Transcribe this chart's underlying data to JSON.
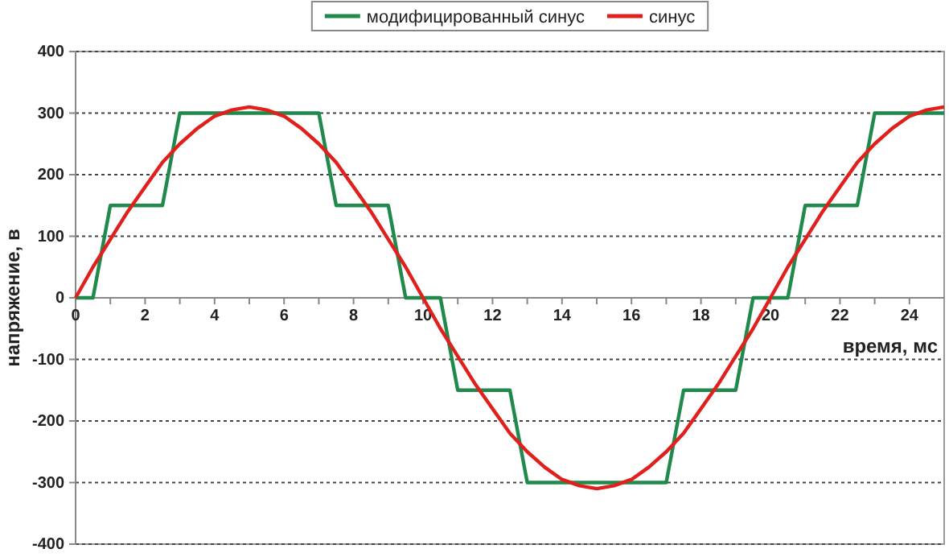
{
  "chart_data": {
    "type": "line",
    "xlabel": "время, мс",
    "ylabel": "напряжение, в",
    "xlim": [
      0,
      25
    ],
    "ylim": [
      -400,
      400
    ],
    "xticks": [
      0,
      {
        "value": 1,
        "label": null
      },
      2,
      {
        "value": 3,
        "label": null
      },
      4,
      {
        "value": 5,
        "label": null
      },
      6,
      {
        "value": 7,
        "label": null
      },
      8,
      {
        "value": 9,
        "label": null
      },
      10,
      {
        "value": 11,
        "label": null
      },
      12,
      {
        "value": 13,
        "label": null
      },
      14,
      {
        "value": 15,
        "label": null
      },
      16,
      {
        "value": 17,
        "label": null
      },
      18,
      {
        "value": 19,
        "label": null
      },
      20,
      {
        "value": 21,
        "label": null
      },
      22,
      {
        "value": 23,
        "label": null
      },
      24
    ],
    "yticks": [
      -400,
      -300,
      -200,
      -100,
      0,
      100,
      200,
      300,
      400
    ],
    "grid": "y",
    "legend": "top",
    "line_style": "solid",
    "marker": "none",
    "series": [
      {
        "name": "модифицированный синус",
        "color": "#1f8a4c",
        "x": [
          0,
          0.5,
          1,
          2.5,
          3,
          7,
          7.5,
          9,
          9.5,
          10.5,
          11,
          12.5,
          13,
          17,
          17.5,
          19,
          19.5,
          20.5,
          21,
          22.5,
          23,
          25
        ],
        "values": [
          0,
          0,
          150,
          150,
          300,
          300,
          150,
          150,
          0,
          0,
          -150,
          -150,
          -300,
          -300,
          -150,
          -150,
          0,
          0,
          150,
          150,
          300,
          300
        ]
      },
      {
        "name": "синус",
        "color": "#e0201c",
        "x": [
          0,
          0.5,
          1,
          1.5,
          2,
          2.5,
          3,
          3.5,
          4,
          4.5,
          5,
          5.5,
          6,
          6.5,
          7,
          7.5,
          8,
          8.5,
          9,
          9.5,
          10,
          10.5,
          11,
          11.5,
          12,
          12.5,
          13,
          13.5,
          14,
          14.5,
          15,
          15.5,
          16,
          16.5,
          17,
          17.5,
          18,
          18.5,
          19,
          19.5,
          20,
          20.5,
          21,
          21.5,
          22,
          22.5,
          23,
          23.5,
          24,
          24.5,
          25
        ],
        "values": [
          0,
          50,
          95,
          140,
          180,
          220,
          250,
          275,
          295,
          305,
          310,
          305,
          295,
          275,
          250,
          220,
          180,
          140,
          95,
          50,
          0,
          -50,
          -95,
          -140,
          -180,
          -220,
          -250,
          -275,
          -295,
          -305,
          -310,
          -305,
          -295,
          -275,
          -250,
          -220,
          -180,
          -140,
          -95,
          -50,
          0,
          50,
          95,
          140,
          180,
          220,
          250,
          275,
          295,
          305,
          310
        ]
      }
    ]
  }
}
